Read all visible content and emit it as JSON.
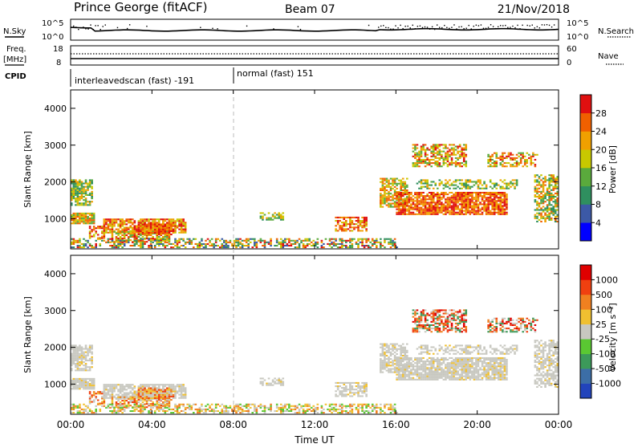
{
  "header": {
    "title": "Prince George (fitACF)",
    "beam": "Beam 07",
    "date": "21/Nov/2018"
  },
  "top_panels": {
    "nsky_label": "N.Sky",
    "nsearch_label": "N.Search",
    "noise_ticks": [
      "10^5",
      "10^0"
    ],
    "freq_label": "Freq.",
    "freq_unit": "[MHz]",
    "freq_ticks": [
      "18",
      "8"
    ],
    "nave_label": "Nave",
    "nave_ticks": [
      "60",
      "0"
    ],
    "cpid_label": "CPID",
    "cpid_segments": [
      {
        "label": "interleavedscan (fast) -191"
      },
      {
        "label": "normal (fast) 151"
      }
    ]
  },
  "chart_data": [
    {
      "type": "heatmap",
      "name": "power",
      "ylabel": "Slant Range [km]",
      "yticks": [
        "1000",
        "2000",
        "3000",
        "4000"
      ],
      "ylim": [
        180,
        4500
      ],
      "xlim": [
        0,
        24
      ],
      "colorbar": {
        "label": "Power [dB]",
        "ticks": [
          "4",
          "8",
          "12",
          "16",
          "20",
          "24",
          "28"
        ],
        "colors": [
          "#0000ff",
          "#3c59a6",
          "#2f8f5f",
          "#5aaa3c",
          "#c8c800",
          "#f0a000",
          "#f06000",
          "#e01010"
        ]
      }
    },
    {
      "type": "heatmap",
      "name": "velocity",
      "ylabel": "Slant Range [km]",
      "yticks": [
        "1000",
        "2000",
        "3000",
        "4000"
      ],
      "ylim": [
        180,
        4500
      ],
      "xlim": [
        0,
        24
      ],
      "colorbar": {
        "label": "Velocity [m s⁻¹]",
        "ticks": [
          "1000",
          "500",
          "100",
          "25",
          "-25",
          "-100",
          "-500",
          "-1000"
        ],
        "colors": [
          "#2244bb",
          "#3c6ea6",
          "#3c9a5a",
          "#5ac832",
          "#c8c8c0",
          "#f0c030",
          "#f08020",
          "#f04010",
          "#e00000"
        ]
      }
    }
  ],
  "xaxis": {
    "ticks": [
      "00:00",
      "04:00",
      "08:00",
      "12:00",
      "16:00",
      "20:00",
      "00:00"
    ],
    "label": "Time UT"
  }
}
